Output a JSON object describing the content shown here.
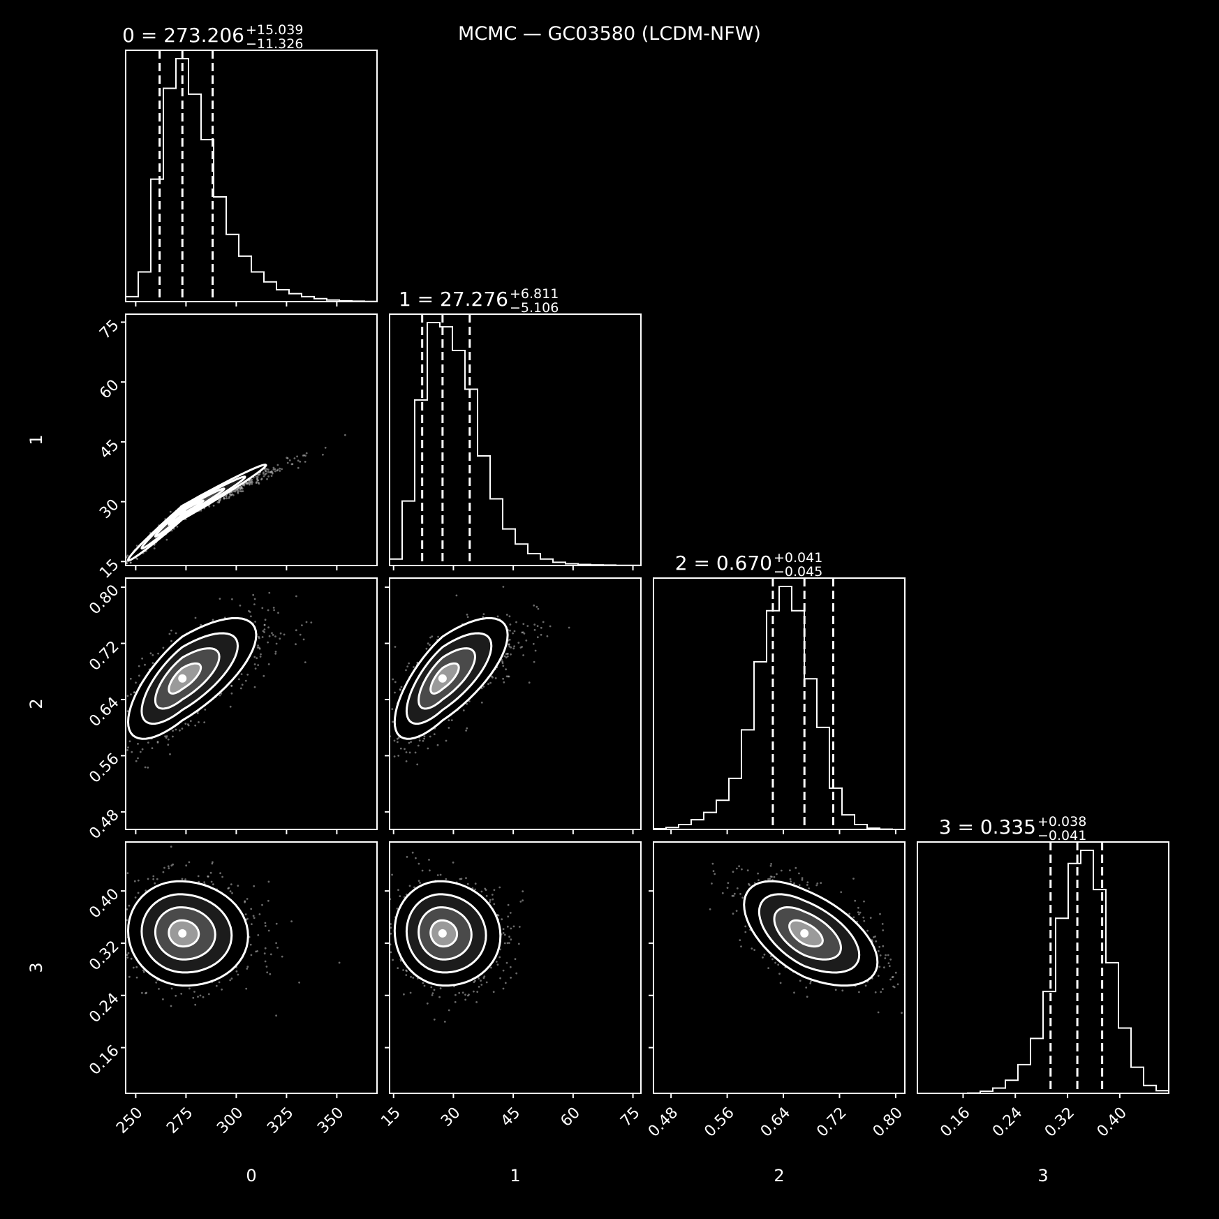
{
  "figure": {
    "title": "MCMC — GC03580 (LCDM-NFW)"
  },
  "chart_data": {
    "type": "corner",
    "parameters": [
      {
        "label": "0",
        "median": 273.206,
        "err_plus": 15.039,
        "err_minus": 11.326,
        "title_main": "0 = 273.206",
        "title_plus": "+15.039",
        "title_minus": "−11.326",
        "range": [
          245,
          370
        ],
        "ticks": [
          250,
          275,
          300,
          325,
          350
        ],
        "tick_labels": [
          "250",
          "275",
          "300",
          "325",
          "350"
        ]
      },
      {
        "label": "1",
        "median": 27.276,
        "err_plus": 6.811,
        "err_minus": 5.106,
        "title_main": "1 = 27.276",
        "title_plus": "+6.811",
        "title_minus": "−5.106",
        "range": [
          14,
          77
        ],
        "ticks": [
          15,
          30,
          45,
          60,
          75
        ],
        "tick_labels": [
          "15",
          "30",
          "45",
          "60",
          "75"
        ]
      },
      {
        "label": "2",
        "median": 0.67,
        "err_plus": 0.041,
        "err_minus": 0.045,
        "title_main": "2 = 0.670",
        "title_plus": "+0.041",
        "title_minus": "−0.045",
        "range": [
          0.455,
          0.813
        ],
        "ticks": [
          0.48,
          0.56,
          0.64,
          0.72,
          0.8
        ],
        "tick_labels": [
          "0.48",
          "0.56",
          "0.64",
          "0.72",
          "0.80"
        ]
      },
      {
        "label": "3",
        "median": 0.335,
        "err_plus": 0.038,
        "err_minus": 0.041,
        "title_main": "3 = 0.335",
        "title_plus": "+0.038",
        "title_minus": "−0.041",
        "range": [
          0.09,
          0.475
        ],
        "ticks": [
          0.16,
          0.24,
          0.32,
          0.4
        ],
        "tick_labels": [
          "0.16",
          "0.24",
          "0.32",
          "0.40"
        ]
      }
    ],
    "histograms": [
      {
        "param": 0,
        "bin_range": [
          245,
          370
        ],
        "counts": [
          25,
          150,
          620,
          1080,
          1230,
          1050,
          820,
          530,
          340,
          230,
          150,
          100,
          60,
          40,
          25,
          15,
          8,
          4,
          2,
          1
        ]
      },
      {
        "param": 1,
        "bin_range": [
          14,
          77
        ],
        "counts": [
          30,
          300,
          770,
          1130,
          1110,
          1000,
          820,
          510,
          310,
          170,
          100,
          55,
          30,
          15,
          8,
          5,
          3,
          2,
          1,
          1
        ]
      },
      {
        "param": 2,
        "bin_range": [
          0.455,
          0.813
        ],
        "counts": [
          3,
          8,
          20,
          40,
          70,
          120,
          210,
          410,
          690,
          900,
          1000,
          900,
          620,
          420,
          170,
          60,
          20,
          5,
          1,
          0
        ]
      },
      {
        "param": 3,
        "bin_range": [
          0.09,
          0.475
        ],
        "counts": [
          0,
          0,
          0,
          0,
          1,
          8,
          20,
          50,
          110,
          210,
          390,
          670,
          880,
          930,
          780,
          500,
          250,
          100,
          30,
          10
        ]
      }
    ],
    "joint": [
      {
        "x": 0,
        "y": 1,
        "mean": [
          273.206,
          27.276
        ],
        "sd": [
          13.5,
          6.0
        ],
        "corr": 0.99
      },
      {
        "x": 0,
        "y": 2,
        "mean": [
          273.206,
          0.67
        ],
        "sd": [
          13.5,
          0.043
        ],
        "corr": 0.72
      },
      {
        "x": 1,
        "y": 2,
        "mean": [
          27.276,
          0.67
        ],
        "sd": [
          6.0,
          0.043
        ],
        "corr": 0.72
      },
      {
        "x": 0,
        "y": 3,
        "mean": [
          273.206,
          0.335
        ],
        "sd": [
          13.5,
          0.04
        ],
        "corr": -0.05
      },
      {
        "x": 1,
        "y": 3,
        "mean": [
          27.276,
          0.335
        ],
        "sd": [
          6.0,
          0.04
        ],
        "corr": -0.05
      },
      {
        "x": 2,
        "y": 3,
        "mean": [
          0.67,
          0.335
        ],
        "sd": [
          0.043,
          0.04
        ],
        "corr": -0.55
      }
    ],
    "contour_levels_sigma": [
      0.5,
      1.0,
      1.5,
      2.0
    ],
    "quantiles": [
      0.16,
      0.5,
      0.84
    ],
    "colors": {
      "background": "#000000",
      "line": "#ffffff",
      "points": "#cccccc"
    }
  }
}
